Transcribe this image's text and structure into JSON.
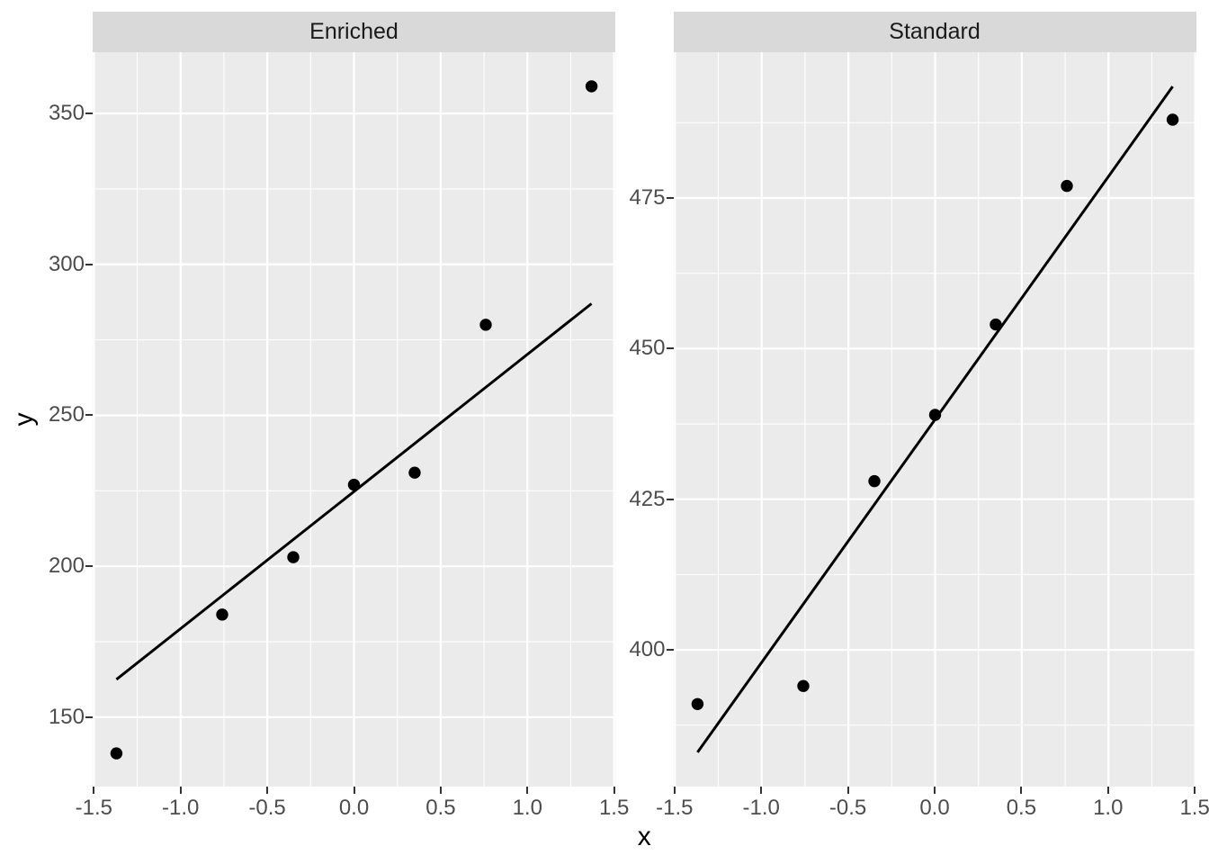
{
  "axes": {
    "x_title": "x",
    "y_title": "y"
  },
  "style": {
    "panel_bg": "#EBEBEB",
    "strip_bg": "#D9D9D9",
    "grid_color": "#FFFFFF",
    "point_color": "#000000",
    "fit_line_color": "#000000",
    "axis_text_color": "#4D4D4D",
    "strip_text_color": "#1A1A1A",
    "tick_color": "#333333"
  },
  "chart_data": [
    {
      "type": "scatter",
      "facet_label": "Enriched",
      "xlim": [
        -1.507,
        1.507
      ],
      "ylim": [
        127.0,
        370.3
      ],
      "x_major_ticks": [
        {
          "v": -1.5,
          "label": "-1.5"
        },
        {
          "v": -1.0,
          "label": "-1.0"
        },
        {
          "v": -0.5,
          "label": "-0.5"
        },
        {
          "v": 0.0,
          "label": "0.0"
        },
        {
          "v": 0.5,
          "label": "0.5"
        },
        {
          "v": 1.0,
          "label": "1.0"
        },
        {
          "v": 1.5,
          "label": "1.5"
        }
      ],
      "x_minor": [
        -1.25,
        -0.75,
        -0.25,
        0.25,
        0.75,
        1.25
      ],
      "y_major_ticks": [
        {
          "v": 150,
          "label": "150"
        },
        {
          "v": 200,
          "label": "200"
        },
        {
          "v": 250,
          "label": "250"
        },
        {
          "v": 300,
          "label": "300"
        },
        {
          "v": 350,
          "label": "350"
        }
      ],
      "y_minor": [
        175,
        225,
        275,
        325
      ],
      "points": [
        [
          -1.37,
          138
        ],
        [
          -0.76,
          184
        ],
        [
          -0.35,
          203
        ],
        [
          0.0,
          227
        ],
        [
          0.35,
          231
        ],
        [
          0.76,
          280
        ],
        [
          1.37,
          359
        ]
      ],
      "fit_line": {
        "x1": -1.37,
        "y1": 162.5,
        "x2": 1.37,
        "y2": 287
      }
    },
    {
      "type": "scatter",
      "facet_label": "Standard",
      "xlim": [
        -1.507,
        1.507
      ],
      "ylim": [
        377.3,
        499.2
      ],
      "x_major_ticks": [
        {
          "v": -1.5,
          "label": "-1.5"
        },
        {
          "v": -1.0,
          "label": "-1.0"
        },
        {
          "v": -0.5,
          "label": "-0.5"
        },
        {
          "v": 0.0,
          "label": "0.0"
        },
        {
          "v": 0.5,
          "label": "0.5"
        },
        {
          "v": 1.0,
          "label": "1.0"
        },
        {
          "v": 1.5,
          "label": "1.5"
        }
      ],
      "x_minor": [
        -1.25,
        -0.75,
        -0.25,
        0.25,
        0.75,
        1.25
      ],
      "y_major_ticks": [
        {
          "v": 400,
          "label": "400"
        },
        {
          "v": 425,
          "label": "425"
        },
        {
          "v": 450,
          "label": "450"
        },
        {
          "v": 475,
          "label": "475"
        }
      ],
      "y_minor": [
        387.5,
        412.5,
        437.5,
        462.5,
        487.5
      ],
      "points": [
        [
          -1.37,
          391
        ],
        [
          -0.76,
          394
        ],
        [
          -0.35,
          428
        ],
        [
          0.0,
          439
        ],
        [
          0.35,
          454
        ],
        [
          0.76,
          477
        ],
        [
          1.37,
          488
        ]
      ],
      "fit_line": {
        "x1": -1.37,
        "y1": 383,
        "x2": 1.37,
        "y2": 493.5
      }
    }
  ]
}
